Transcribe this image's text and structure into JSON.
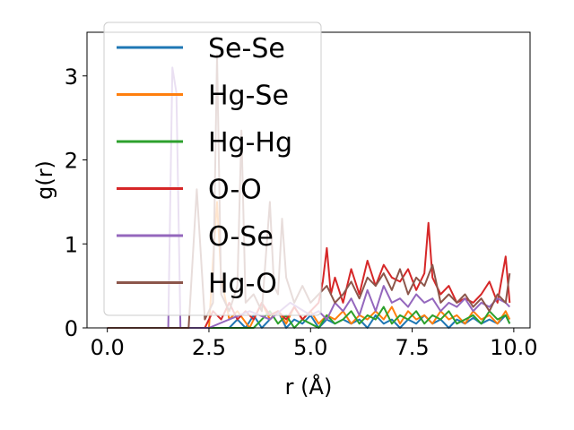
{
  "chart_data": {
    "type": "line",
    "xlabel": "r (Å)",
    "ylabel": "g(r)",
    "xlim": [
      -0.5,
      10.4
    ],
    "ylim": [
      0,
      3.52
    ],
    "xticks": [
      0.0,
      2.5,
      5.0,
      7.5,
      10.0
    ],
    "xtick_labels": [
      "0.0",
      "2.5",
      "5.0",
      "7.5",
      "10.0"
    ],
    "yticks": [
      0,
      1,
      2,
      3
    ],
    "ytick_labels": [
      "0",
      "1",
      "2",
      "3"
    ],
    "grid": false,
    "legend": "upper left",
    "series": [
      {
        "name": "Se-Se",
        "color": "#1f77b4",
        "x": [
          0.0,
          1.0,
          2.0,
          2.8,
          3.0,
          3.2,
          3.4,
          3.6,
          3.8,
          4.0,
          4.2,
          4.4,
          4.6,
          4.8,
          5.0,
          5.2,
          5.4,
          5.6,
          5.8,
          6.0,
          6.2,
          6.4,
          6.6,
          6.8,
          7.0,
          7.2,
          7.4,
          7.6,
          7.8,
          8.0,
          8.2,
          8.4,
          8.6,
          8.8,
          9.0,
          9.2,
          9.4,
          9.6,
          9.8,
          9.9
        ],
        "y": [
          0,
          0,
          0,
          0,
          0,
          0.1,
          0,
          0.15,
          0,
          0.1,
          0.2,
          0,
          0.1,
          0.05,
          0.15,
          0,
          0.1,
          0.05,
          0.1,
          0.05,
          0.1,
          0,
          0.15,
          0.05,
          0.1,
          0,
          0.1,
          0.05,
          0.15,
          0.05,
          0.1,
          0,
          0.1,
          0.05,
          0.12,
          0.05,
          0.1,
          0.05,
          0.15,
          0.05
        ]
      },
      {
        "name": "Hg-Se",
        "color": "#ff7f0e",
        "x": [
          0.0,
          1.0,
          2.0,
          2.5,
          2.6,
          2.7,
          2.8,
          3.0,
          3.2,
          3.5,
          3.8,
          4.0,
          4.2,
          4.4,
          4.6,
          4.8,
          5.0,
          5.2,
          5.4,
          5.6,
          5.8,
          6.0,
          6.2,
          6.4,
          6.6,
          6.8,
          7.0,
          7.2,
          7.4,
          7.6,
          7.8,
          8.0,
          8.2,
          8.4,
          8.6,
          8.8,
          9.0,
          9.2,
          9.4,
          9.6,
          9.8,
          9.9
        ],
        "y": [
          0,
          0,
          0,
          0,
          0.8,
          1.5,
          0.6,
          0.1,
          0.2,
          0,
          0.3,
          0.1,
          0.2,
          0.05,
          0.25,
          0.1,
          0.2,
          0.05,
          0.15,
          0.1,
          0.2,
          0.05,
          0.15,
          0.1,
          0.2,
          0.1,
          0.25,
          0.05,
          0.2,
          0.1,
          0.15,
          0.05,
          0.2,
          0.1,
          0.15,
          0.05,
          0.2,
          0.1,
          0.15,
          0.05,
          0.2,
          0.1
        ]
      },
      {
        "name": "Hg-Hg",
        "color": "#2ca02c",
        "x": [
          0.0,
          1.0,
          2.0,
          3.0,
          3.6,
          4.0,
          4.2,
          4.4,
          4.6,
          4.8,
          5.0,
          5.2,
          5.4,
          5.6,
          5.8,
          6.0,
          6.2,
          6.4,
          6.6,
          6.8,
          7.0,
          7.2,
          7.4,
          7.6,
          7.8,
          8.0,
          8.2,
          8.4,
          8.6,
          8.8,
          9.0,
          9.2,
          9.4,
          9.6,
          9.8,
          9.9
        ],
        "y": [
          0,
          0,
          0,
          0,
          0,
          0.2,
          0.05,
          0.15,
          0,
          0.1,
          0.05,
          0,
          0.15,
          0.05,
          0.1,
          0.2,
          0.05,
          0.15,
          0.1,
          0.25,
          0.05,
          0.15,
          0.1,
          0.2,
          0.05,
          0.15,
          0.1,
          0.2,
          0.05,
          0.1,
          0.15,
          0.05,
          0.2,
          0.1,
          0.15,
          0.05
        ]
      },
      {
        "name": "O-O",
        "color": "#d62728",
        "x": [
          0.0,
          1.0,
          2.0,
          2.4,
          2.6,
          2.8,
          3.0,
          3.2,
          3.4,
          3.6,
          3.8,
          4.0,
          4.2,
          4.4,
          4.6,
          4.8,
          5.0,
          5.2,
          5.3,
          5.4,
          5.5,
          5.6,
          5.8,
          6.0,
          6.2,
          6.4,
          6.6,
          6.8,
          7.0,
          7.2,
          7.4,
          7.6,
          7.8,
          7.9,
          8.0,
          8.2,
          8.4,
          8.6,
          8.8,
          9.0,
          9.2,
          9.4,
          9.6,
          9.8,
          9.9
        ],
        "y": [
          0,
          0,
          0,
          0,
          0.2,
          0.1,
          0.3,
          0.1,
          0.2,
          0.1,
          0.3,
          0.15,
          0.2,
          0.1,
          0.25,
          0.1,
          0.2,
          0.3,
          0.55,
          0.95,
          0.4,
          0.6,
          0.3,
          0.7,
          0.4,
          0.8,
          0.5,
          0.75,
          0.6,
          0.55,
          0.7,
          0.45,
          0.65,
          1.25,
          0.6,
          0.4,
          0.5,
          0.3,
          0.35,
          0.3,
          0.4,
          0.55,
          0.3,
          0.85,
          0.3
        ]
      },
      {
        "name": "O-Se",
        "color": "#9467bd",
        "x": [
          0.0,
          1.0,
          1.5,
          1.6,
          1.7,
          1.8,
          2.0,
          2.5,
          3.0,
          3.5,
          4.0,
          4.5,
          5.0,
          5.2,
          5.4,
          5.6,
          5.8,
          6.0,
          6.2,
          6.4,
          6.6,
          6.8,
          7.0,
          7.2,
          7.4,
          7.6,
          7.8,
          8.0,
          8.2,
          8.4,
          8.6,
          8.8,
          9.0,
          9.2,
          9.4,
          9.6,
          9.8,
          9.9
        ],
        "y": [
          0,
          0,
          0,
          3.1,
          2.8,
          0,
          0,
          0,
          0.1,
          0.2,
          0.1,
          0.3,
          0.15,
          0.2,
          0.1,
          0.3,
          0.2,
          0.35,
          0.15,
          0.45,
          0.2,
          0.5,
          0.3,
          0.35,
          0.25,
          0.4,
          0.3,
          0.35,
          0.2,
          0.3,
          0.25,
          0.35,
          0.2,
          0.3,
          0.25,
          0.35,
          0.3,
          0.25
        ]
      },
      {
        "name": "Hg-O",
        "color": "#8c564b",
        "x": [
          0.0,
          1.0,
          2.0,
          2.2,
          2.4,
          2.6,
          2.7,
          2.8,
          3.0,
          3.2,
          3.3,
          3.4,
          3.6,
          3.8,
          4.0,
          4.1,
          4.2,
          4.3,
          4.4,
          4.6,
          4.8,
          5.0,
          5.2,
          5.4,
          5.6,
          5.8,
          6.0,
          6.2,
          6.4,
          6.6,
          6.8,
          7.0,
          7.2,
          7.4,
          7.6,
          7.8,
          8.0,
          8.2,
          8.4,
          8.6,
          8.8,
          9.0,
          9.2,
          9.4,
          9.6,
          9.8,
          9.9
        ],
        "y": [
          0,
          0,
          0,
          1.65,
          0.1,
          0.3,
          3.25,
          0.4,
          0.2,
          0.5,
          2.35,
          0.3,
          0.4,
          0.2,
          1.5,
          0.5,
          0.4,
          1.3,
          0.6,
          0.3,
          0.5,
          0.3,
          0.4,
          0.5,
          0.3,
          0.4,
          0.55,
          0.35,
          0.6,
          0.5,
          0.65,
          0.45,
          0.7,
          0.4,
          0.6,
          0.5,
          0.75,
          0.3,
          0.4,
          0.3,
          0.4,
          0.25,
          0.35,
          0.2,
          0.4,
          0.3,
          0.65
        ]
      }
    ]
  }
}
